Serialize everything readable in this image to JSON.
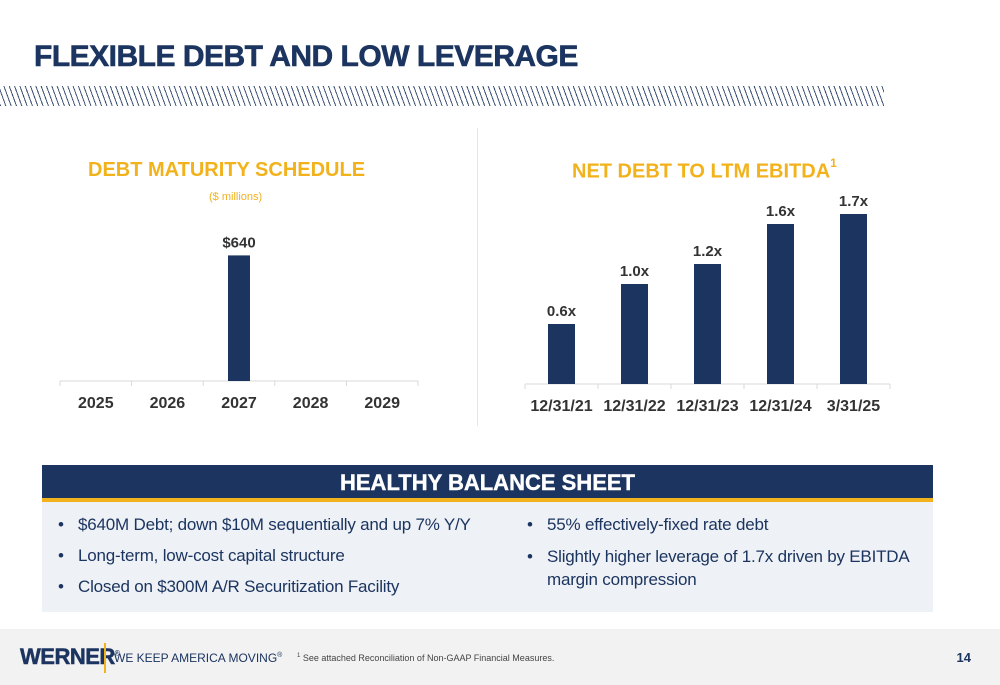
{
  "slide": {
    "title": "FLEXIBLE DEBT AND LOW LEVERAGE",
    "page_number": "14"
  },
  "colors": {
    "navy": "#1c3560",
    "gold": "#f2b21c",
    "panel_bg": "#eef1f5"
  },
  "chart_data": [
    {
      "type": "bar",
      "title": "DEBT MATURITY SCHEDULE",
      "subtitle": "($ millions)",
      "categories": [
        "2025",
        "2026",
        "2027",
        "2028",
        "2029"
      ],
      "values": [
        0,
        0,
        640,
        0,
        0
      ],
      "labels": [
        "",
        "",
        "$640",
        "",
        ""
      ],
      "ylim": [
        0,
        800
      ],
      "grid": false
    },
    {
      "type": "bar",
      "title": "NET DEBT TO LTM EBITDA",
      "title_superscript": "1",
      "categories": [
        "12/31/21",
        "12/31/22",
        "12/31/23",
        "12/31/24",
        "3/31/25"
      ],
      "values": [
        0.6,
        1.0,
        1.2,
        1.6,
        1.7
      ],
      "labels": [
        "0.6x",
        "1.0x",
        "1.2x",
        "1.6x",
        "1.7x"
      ],
      "ylim": [
        0,
        1.9
      ],
      "grid": false
    }
  ],
  "balance_sheet": {
    "title": "HEALTHY BALANCE SHEET",
    "left_bullets": [
      "$640M Debt; down $10M sequentially and up 7% Y/Y",
      "Long-term, low-cost capital structure",
      "Closed on $300M A/R Securitization Facility"
    ],
    "right_bullets": [
      "55% effectively-fixed rate debt",
      "Slightly higher leverage of 1.7x driven by EBITDA margin compression"
    ],
    "bullet_glyph": "•"
  },
  "footer": {
    "logo": "WERNER",
    "logo_mark": "®",
    "tagline": "WE KEEP AMERICA MOVING",
    "tagline_mark": "®",
    "footnote_marker": "1",
    "footnote": "See attached Reconciliation of Non-GAAP Financial Measures."
  }
}
